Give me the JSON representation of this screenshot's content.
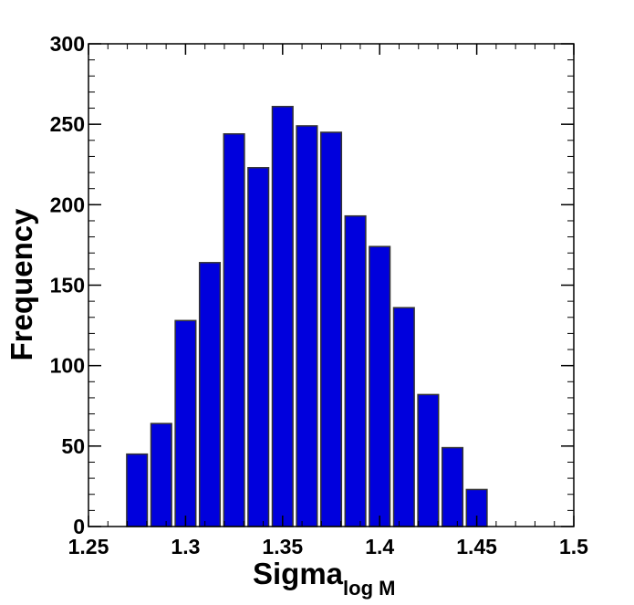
{
  "chart_data": {
    "type": "bar",
    "title": "",
    "xlabel_main": "Sigma",
    "xlabel_sub": "log M",
    "ylabel": "Frequency",
    "xlim": [
      1.25,
      1.5
    ],
    "ylim": [
      0,
      300
    ],
    "xticks": [
      "1.25",
      "1.3",
      "1.35",
      "1.4",
      "1.45",
      "1.5"
    ],
    "yticks": [
      "0",
      "50",
      "100",
      "150",
      "200",
      "250",
      "300"
    ],
    "bin_width": 0.0125,
    "bar_color": "#0000dd",
    "bar_edge": "#333333",
    "bins": [
      {
        "x": 1.275,
        "value": 45
      },
      {
        "x": 1.2875,
        "value": 64
      },
      {
        "x": 1.3,
        "value": 128
      },
      {
        "x": 1.3125,
        "value": 164
      },
      {
        "x": 1.325,
        "value": 244
      },
      {
        "x": 1.3375,
        "value": 223
      },
      {
        "x": 1.35,
        "value": 261
      },
      {
        "x": 1.3625,
        "value": 249
      },
      {
        "x": 1.375,
        "value": 245
      },
      {
        "x": 1.3875,
        "value": 193
      },
      {
        "x": 1.4,
        "value": 174
      },
      {
        "x": 1.4125,
        "value": 136
      },
      {
        "x": 1.425,
        "value": 82
      },
      {
        "x": 1.4375,
        "value": 49
      },
      {
        "x": 1.45,
        "value": 23
      }
    ]
  }
}
